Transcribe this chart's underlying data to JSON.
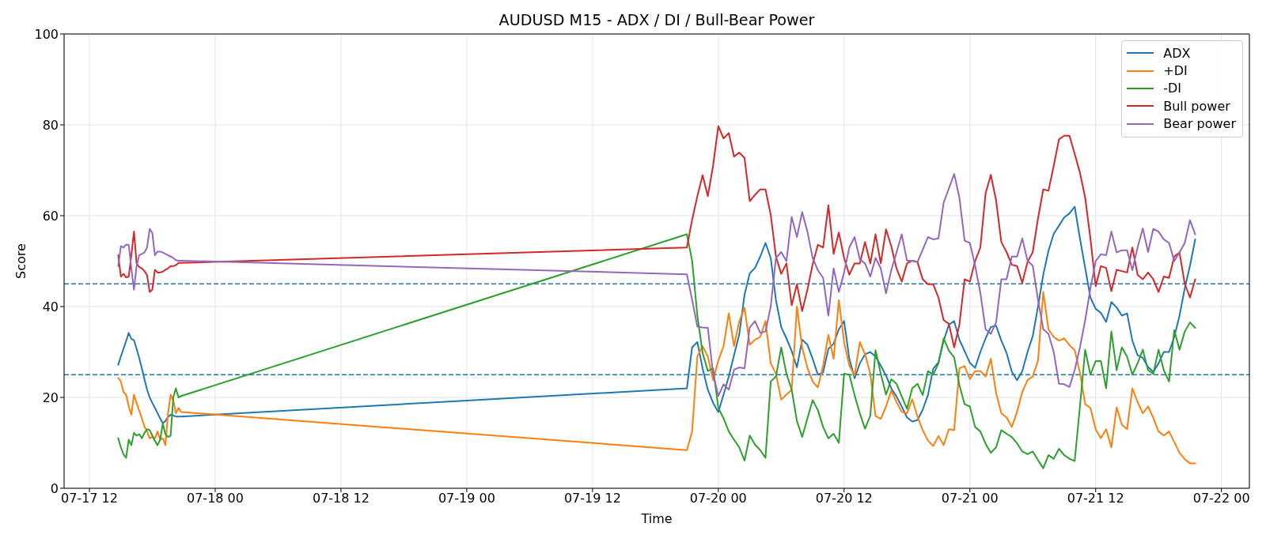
{
  "chart_data": {
    "type": "line",
    "title": "AUDUSD M15 - ADX / DI / Bull-Bear Power",
    "xlabel": "Time",
    "ylabel": "Score",
    "x": [
      "--07-17T14:45",
      "--07-17T15:00",
      "--07-17T15:15",
      "--07-17T15:30",
      "--07-17T15:45",
      "--07-17T16:00",
      "--07-17T16:15",
      "--07-17T16:30",
      "--07-17T16:45",
      "--07-17T17:00",
      "--07-17T17:15",
      "--07-17T17:30",
      "--07-17T17:45",
      "--07-17T18:00",
      "--07-17T18:15",
      "--07-17T18:30",
      "--07-17T18:45",
      "--07-17T19:00",
      "--07-17T19:15",
      "--07-17T19:30",
      "--07-17T19:45",
      "--07-17T20:00",
      "--07-17T20:15",
      "--07-17T20:30",
      "--07-17T20:45",
      "--07-19T21:00",
      "--07-19T21:30",
      "--07-19T22:00",
      "--07-19T22:30",
      "--07-19T23:00",
      "--07-19T23:30",
      "--07-20T00:00",
      "--07-20T00:30",
      "--07-20T01:00",
      "--07-20T01:30",
      "--07-20T02:00",
      "--07-20T02:30",
      "--07-20T03:00",
      "--07-20T03:30",
      "--07-20T04:00",
      "--07-20T04:30",
      "--07-20T05:00",
      "--07-20T05:30",
      "--07-20T06:00",
      "--07-20T06:30",
      "--07-20T07:00",
      "--07-20T07:30",
      "--07-20T08:00",
      "--07-20T08:30",
      "--07-20T09:00",
      "--07-20T09:30",
      "--07-20T10:00",
      "--07-20T10:30",
      "--07-20T11:00",
      "--07-20T11:30",
      "--07-20T12:00",
      "--07-20T12:30",
      "--07-20T13:00",
      "--07-20T13:30",
      "--07-20T14:00",
      "--07-20T14:30",
      "--07-20T15:00",
      "--07-20T15:30",
      "--07-20T16:00",
      "--07-20T16:30",
      "--07-20T17:00",
      "--07-20T17:30",
      "--07-20T18:00",
      "--07-20T18:30",
      "--07-20T19:00",
      "--07-20T19:30",
      "--07-20T20:00",
      "--07-20T20:30",
      "--07-20T21:00",
      "--07-20T21:30",
      "--07-20T22:00",
      "--07-20T22:30",
      "--07-20T23:00",
      "--07-20T23:30",
      "--07-21T00:00",
      "--07-21T00:30",
      "--07-21T01:00",
      "--07-21T01:30",
      "--07-21T02:00",
      "--07-21T02:30",
      "--07-21T03:00",
      "--07-21T03:30",
      "--07-21T04:00",
      "--07-21T04:30",
      "--07-21T05:00",
      "--07-21T05:30",
      "--07-21T06:00",
      "--07-21T06:30",
      "--07-21T07:00",
      "--07-21T07:30",
      "--07-21T08:00",
      "--07-21T08:30",
      "--07-21T09:00",
      "--07-21T09:30",
      "--07-21T10:00",
      "--07-21T10:30",
      "--07-21T11:00",
      "--07-21T11:30",
      "--07-21T12:00",
      "--07-21T12:30",
      "--07-21T13:00",
      "--07-21T13:30",
      "--07-21T14:00",
      "--07-21T14:30",
      "--07-21T15:00",
      "--07-21T15:30",
      "--07-21T16:00",
      "--07-21T16:30",
      "--07-21T17:00",
      "--07-21T17:30",
      "--07-21T18:00",
      "--07-21T18:30",
      "--07-21T19:00",
      "--07-21T19:30",
      "--07-21T20:00",
      "--07-21T20:30",
      "--07-21T21:00",
      "--07-21T21:30"
    ],
    "series": [
      {
        "name": "ADX",
        "color": "#1f77b4",
        "values": [
          27.2,
          29.0,
          30.7,
          32.4,
          34.2,
          32.9,
          32.6,
          30.7,
          28.7,
          26.4,
          24.0,
          21.7,
          20.0,
          18.8,
          17.7,
          16.5,
          15.4,
          14.3,
          14.8,
          15.7,
          16.2,
          16.0,
          15.8,
          15.8,
          15.8,
          22.0,
          31.0,
          32.2,
          26.4,
          21.7,
          18.8,
          16.8,
          20.6,
          24.6,
          29.3,
          33.9,
          42.6,
          47.3,
          48.5,
          51.0,
          54.0,
          50.7,
          41.4,
          35.5,
          33.0,
          30.2,
          26.6,
          32.7,
          31.6,
          28.5,
          25.0,
          25.5,
          30.7,
          31.8,
          35.0,
          36.8,
          28.5,
          24.2,
          27.5,
          29.5,
          30.0,
          29.0,
          27.0,
          24.8,
          22.0,
          20.2,
          18.0,
          15.6,
          14.7,
          15.0,
          17.3,
          20.5,
          26.3,
          27.7,
          32.5,
          36.0,
          36.8,
          32.7,
          30.2,
          27.6,
          26.5,
          30.0,
          33.0,
          35.5,
          35.8,
          32.5,
          29.8,
          25.7,
          23.8,
          25.8,
          30.0,
          33.5,
          40.0,
          47.0,
          52.3,
          56.0,
          57.8,
          59.6,
          60.5,
          62.0,
          55.0,
          48.5,
          42.0,
          39.5,
          38.6,
          36.6,
          41.0,
          39.8,
          38.0,
          38.5,
          32.5,
          29.3,
          28.7,
          26.7,
          25.6,
          27.5,
          30.0,
          30.0,
          33.3,
          38.0,
          44.0,
          49.0,
          54.8
        ]
      },
      {
        "name": "+DI",
        "color": "#ff7f0e",
        "values": [
          24.3,
          23.5,
          21.2,
          20.6,
          18.0,
          16.2,
          20.6,
          18.8,
          17.1,
          15.4,
          13.6,
          12.5,
          11.0,
          11.3,
          11.0,
          12.5,
          10.7,
          11.0,
          9.5,
          16.5,
          20.6,
          19.4,
          16.5,
          17.7,
          16.8,
          8.4,
          12.5,
          29.0,
          31.3,
          29.0,
          23.8,
          28.1,
          31.3,
          38.5,
          31.3,
          36.8,
          39.7,
          31.6,
          32.7,
          33.3,
          36.8,
          27.5,
          25.2,
          19.5,
          20.6,
          21.7,
          40.0,
          31.0,
          26.5,
          23.5,
          22.2,
          27.0,
          33.8,
          28.5,
          41.4,
          32.2,
          27.0,
          24.8,
          32.2,
          29.5,
          25.2,
          15.9,
          15.3,
          18.0,
          21.5,
          19.0,
          16.8,
          16.5,
          19.6,
          15.8,
          12.8,
          10.5,
          9.3,
          11.5,
          9.5,
          13.0,
          12.8,
          26.4,
          26.9,
          24.0,
          25.8,
          25.8,
          24.6,
          28.5,
          21.0,
          16.5,
          15.6,
          13.5,
          16.8,
          21.2,
          23.8,
          24.6,
          28.1,
          43.2,
          35.0,
          33.3,
          32.5,
          33.0,
          31.5,
          30.4,
          25.5,
          18.5,
          17.7,
          13.0,
          11.0,
          13.0,
          9.0,
          17.8,
          14.0,
          13.0,
          22.0,
          19.0,
          16.5,
          18.0,
          15.5,
          12.5,
          11.6,
          12.5,
          10.2,
          7.8,
          6.4,
          5.5,
          5.5
        ]
      },
      {
        "name": "-DI",
        "color": "#2ca02c",
        "values": [
          11.0,
          9.0,
          7.5,
          6.7,
          10.7,
          9.5,
          12.2,
          11.6,
          11.9,
          11.0,
          12.2,
          13.0,
          12.8,
          11.6,
          10.4,
          9.5,
          10.7,
          14.2,
          11.9,
          11.3,
          11.6,
          20.0,
          22.0,
          20.0,
          20.3,
          55.9,
          50.1,
          38.0,
          29.8,
          25.8,
          26.4,
          17.7,
          15.4,
          12.5,
          10.7,
          9.0,
          6.1,
          11.6,
          9.6,
          8.4,
          6.7,
          23.5,
          24.6,
          31.0,
          25.2,
          21.7,
          14.8,
          11.3,
          15.4,
          19.4,
          17.2,
          13.5,
          11.0,
          12.0,
          10.0,
          25.2,
          25.0,
          20.5,
          16.5,
          13.1,
          16.0,
          30.4,
          25.2,
          20.6,
          24.0,
          23.0,
          20.2,
          17.5,
          22.0,
          23.0,
          20.5,
          25.8,
          25.0,
          27.5,
          33.0,
          30.3,
          28.8,
          22.7,
          18.5,
          18.0,
          13.5,
          12.5,
          9.8,
          7.8,
          9.0,
          12.8,
          12.0,
          11.3,
          9.9,
          8.1,
          7.5,
          8.1,
          6.2,
          4.4,
          7.3,
          6.5,
          8.7,
          7.3,
          6.5,
          6.0,
          18.0,
          30.5,
          25.0,
          28.0,
          28.0,
          22.0,
          34.5,
          26.0,
          31.0,
          29.0,
          25.0,
          27.5,
          30.5,
          26.0,
          25.2,
          30.5,
          26.0,
          23.5,
          34.8,
          30.5,
          34.5,
          36.5,
          35.3
        ]
      },
      {
        "name": "Bull power",
        "color": "#d62728",
        "values": [
          51.3,
          46.6,
          47.2,
          46.4,
          46.6,
          51.3,
          56.5,
          49.5,
          48.7,
          48.4,
          47.8,
          46.9,
          43.2,
          43.7,
          48.1,
          47.5,
          47.5,
          47.7,
          48.1,
          48.4,
          48.9,
          48.9,
          49.1,
          49.6,
          49.6,
          53.0,
          59.1,
          64.3,
          68.9,
          64.3,
          71.0,
          79.7,
          77.0,
          78.2,
          73.0,
          73.9,
          72.7,
          63.2,
          64.6,
          65.8,
          65.8,
          60.2,
          51.0,
          47.2,
          49.5,
          40.3,
          44.9,
          39.0,
          43.7,
          49.3,
          53.6,
          53.0,
          62.3,
          51.6,
          56.3,
          50.7,
          47.0,
          49.5,
          49.5,
          54.2,
          49.5,
          55.9,
          49.5,
          57.0,
          53.3,
          48.4,
          45.5,
          49.5,
          50.1,
          49.8,
          46.0,
          44.9,
          44.9,
          42.0,
          37.0,
          36.2,
          31.0,
          36.0,
          46.0,
          45.5,
          50.0,
          53.0,
          64.9,
          69.0,
          63.4,
          54.2,
          52.0,
          49.2,
          48.9,
          45.2,
          49.8,
          52.0,
          59.4,
          65.8,
          65.5,
          71.0,
          76.8,
          77.6,
          77.6,
          73.6,
          69.5,
          64.0,
          55.0,
          44.5,
          48.9,
          48.5,
          43.4,
          48.1,
          47.8,
          47.5,
          53.0,
          47.0,
          46.0,
          47.5,
          46.0,
          43.2,
          46.6,
          46.3,
          51.0,
          51.9,
          45.0,
          42.0,
          46.0
        ]
      },
      {
        "name": "Bear power",
        "color": "#9467bd",
        "values": [
          48.9,
          53.3,
          53.0,
          53.6,
          53.6,
          48.4,
          43.7,
          48.9,
          51.3,
          51.6,
          51.9,
          53.0,
          57.1,
          56.2,
          51.3,
          52.1,
          52.1,
          51.9,
          51.6,
          51.3,
          51.0,
          50.7,
          50.2,
          50.1,
          50.1,
          47.1,
          41.5,
          35.6,
          35.4,
          35.3,
          25.2,
          20.3,
          22.9,
          21.7,
          26.1,
          26.6,
          26.4,
          35.4,
          36.8,
          34.2,
          34.5,
          40.0,
          50.7,
          52.0,
          50.0,
          59.7,
          55.3,
          60.8,
          56.5,
          50.7,
          48.0,
          46.3,
          38.0,
          48.4,
          43.2,
          47.5,
          53.0,
          55.3,
          50.4,
          49.5,
          46.6,
          50.7,
          48.4,
          42.9,
          48.0,
          51.9,
          55.9,
          50.1,
          50.1,
          49.8,
          52.5,
          55.3,
          54.8,
          55.0,
          62.9,
          66.0,
          69.2,
          64.0,
          54.5,
          54.0,
          49.0,
          43.0,
          35.0,
          34.0,
          36.5,
          46.0,
          46.0,
          51.0,
          51.0,
          55.0,
          50.1,
          49.0,
          41.5,
          35.0,
          34.0,
          30.0,
          23.0,
          22.9,
          22.3,
          26.0,
          31.0,
          37.0,
          44.0,
          50.0,
          51.5,
          51.3,
          56.5,
          51.9,
          52.4,
          52.4,
          48.0,
          53.0,
          57.2,
          52.0,
          57.1,
          56.5,
          54.8,
          54.0,
          50.0,
          51.9,
          54.0,
          59.0,
          55.9
        ]
      }
    ],
    "xlim": [
      "--07-17T09:35",
      "--07-22T02:40"
    ],
    "xticks": [
      {
        "value": "--07-17T12:00",
        "label": "07-17 12"
      },
      {
        "value": "--07-18T00:00",
        "label": "07-18 00"
      },
      {
        "value": "--07-18T12:00",
        "label": "07-18 12"
      },
      {
        "value": "--07-19T00:00",
        "label": "07-19 00"
      },
      {
        "value": "--07-19T12:00",
        "label": "07-19 12"
      },
      {
        "value": "--07-20T00:00",
        "label": "07-20 00"
      },
      {
        "value": "--07-20T12:00",
        "label": "07-20 12"
      },
      {
        "value": "--07-21T00:00",
        "label": "07-21 00"
      },
      {
        "value": "--07-21T12:00",
        "label": "07-21 12"
      },
      {
        "value": "--07-22T00:00",
        "label": "07-22 00"
      }
    ],
    "ylim": [
      0,
      100
    ],
    "yticks": [
      0,
      20,
      40,
      60,
      80,
      100
    ],
    "ref_lines": [
      {
        "axis": "y",
        "value": 45,
        "color": "#1f77b4",
        "line_style": "dashed"
      },
      {
        "axis": "y",
        "value": 25,
        "color": "#1f77b4",
        "line_style": "dashed"
      }
    ],
    "grid": true,
    "legend": "top right"
  }
}
